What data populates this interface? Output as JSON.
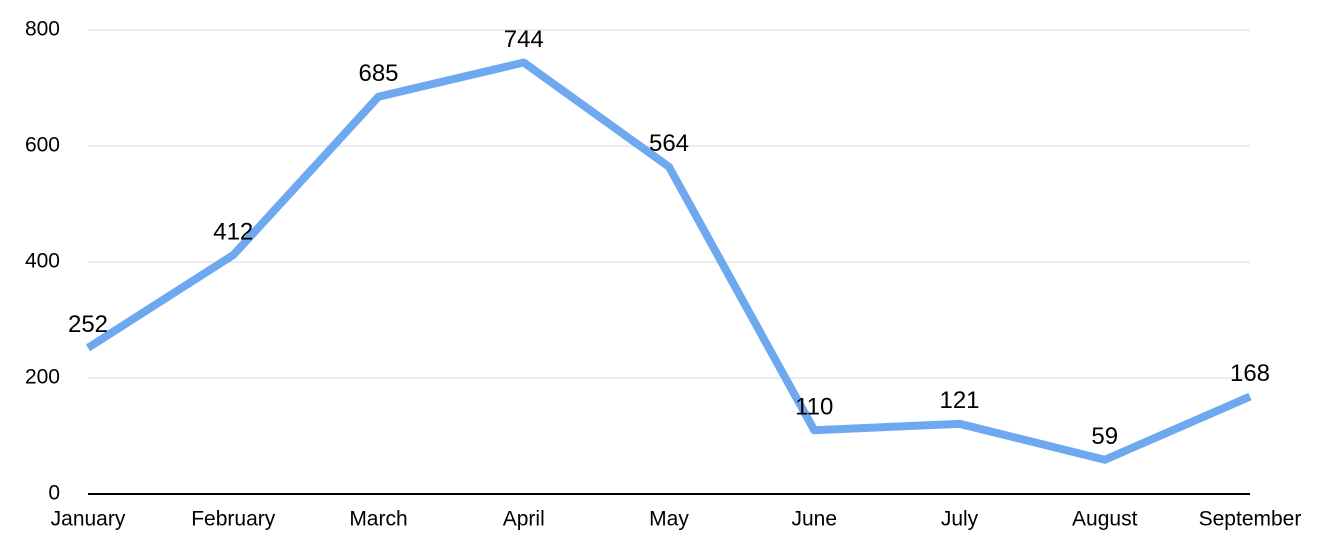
{
  "chart_data": {
    "type": "line",
    "categories": [
      "January",
      "February",
      "March",
      "April",
      "May",
      "June",
      "July",
      "August",
      "September"
    ],
    "series": [
      {
        "color": "#6ea9ef",
        "values": [
          252,
          412,
          685,
          744,
          564,
          110,
          121,
          59,
          168
        ]
      }
    ],
    "ylim": [
      0,
      800
    ],
    "yticks": [
      0,
      200,
      400,
      600,
      800
    ],
    "grid": true
  }
}
